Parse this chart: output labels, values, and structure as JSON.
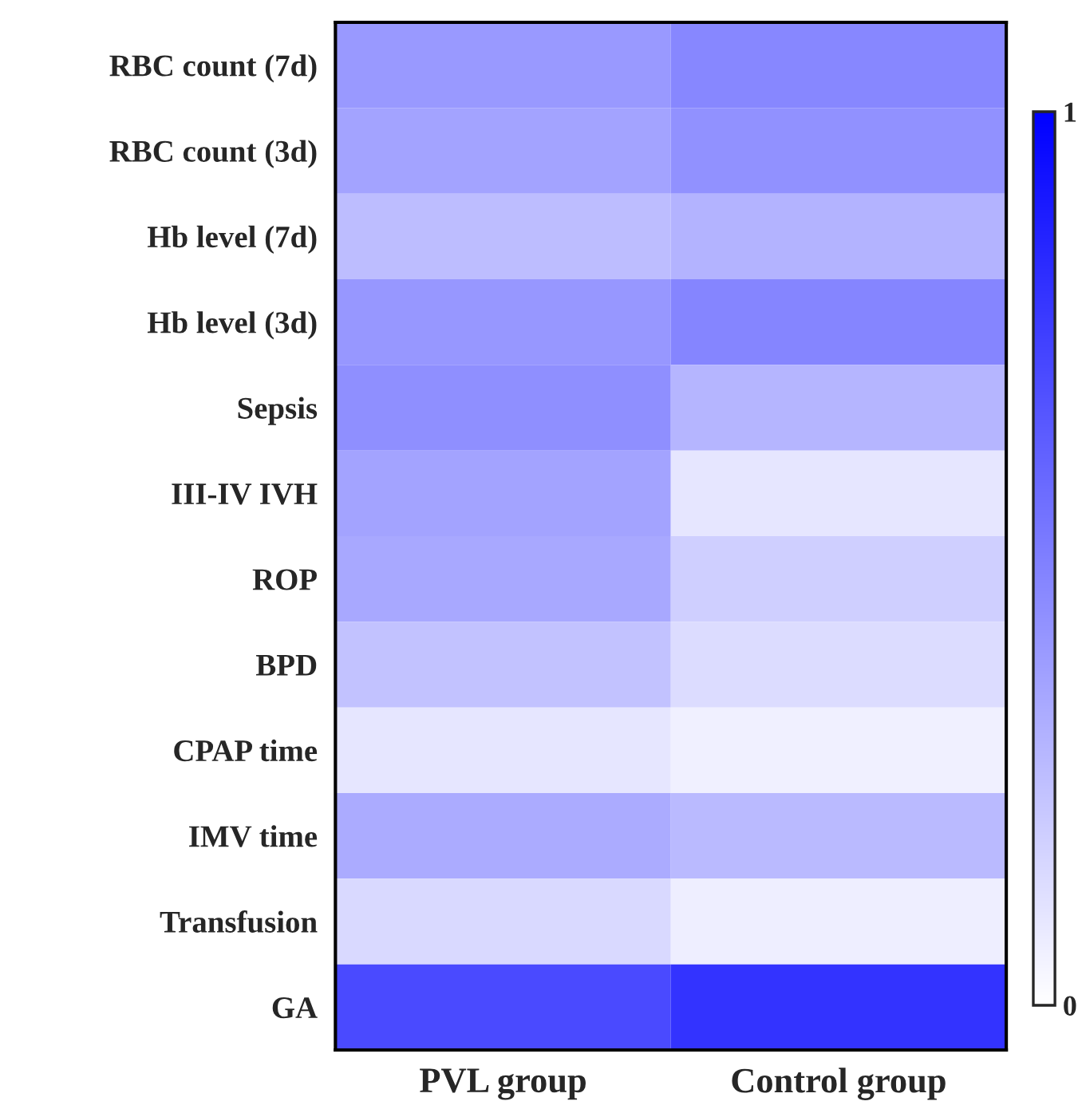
{
  "chart_data": {
    "type": "heatmap",
    "categories": [
      "PVL group",
      "Control group"
    ],
    "y_categories": [
      "RBC count (7d)",
      "RBC count (3d)",
      "Hb level (7d)",
      "Hb level (3d)",
      "Sepsis",
      "III-IV IVH",
      "ROP",
      "BPD",
      "CPAP time",
      "IMV time",
      "Transfusion",
      "GA"
    ],
    "cells": [
      [
        0.4,
        0.47
      ],
      [
        0.36,
        0.43
      ],
      [
        0.26,
        0.3
      ],
      [
        0.41,
        0.48
      ],
      [
        0.44,
        0.29
      ],
      [
        0.36,
        0.1
      ],
      [
        0.34,
        0.19
      ],
      [
        0.24,
        0.14
      ],
      [
        0.1,
        0.06
      ],
      [
        0.33,
        0.27
      ],
      [
        0.15,
        0.07
      ],
      [
        0.71,
        0.8
      ]
    ],
    "clim": [
      0,
      1
    ],
    "cticks": [
      0,
      1
    ]
  }
}
